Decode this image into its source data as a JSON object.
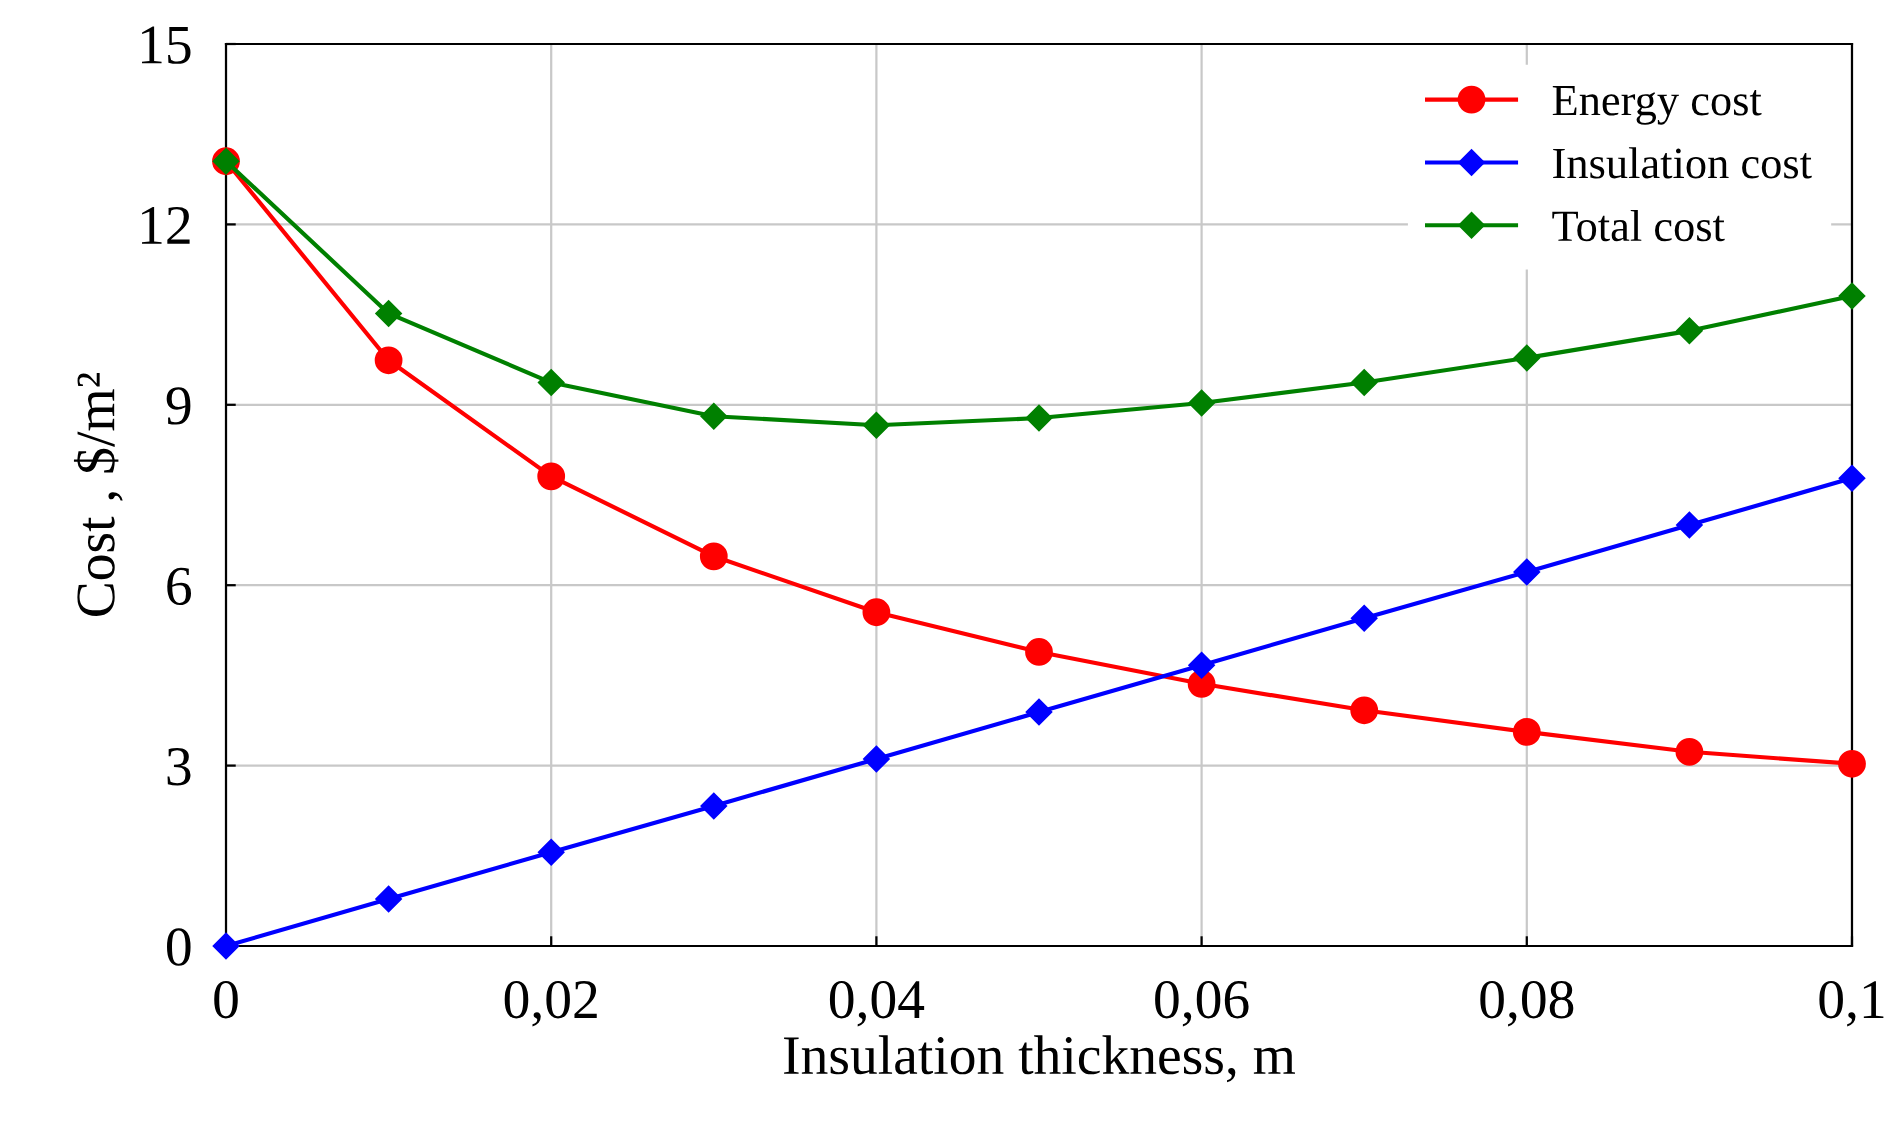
{
  "chart_data": {
    "type": "line",
    "xlabel": "Insulation thickness, m",
    "ylabel": "Cost , $/m²",
    "x": [
      0,
      0.01,
      0.02,
      0.03,
      0.04,
      0.05,
      0.06,
      0.07,
      0.08,
      0.09,
      0.1
    ],
    "series": [
      {
        "name": "Energy cost",
        "color": "#ff0000",
        "marker": "circle",
        "values": [
          13.05,
          9.74,
          7.81,
          6.48,
          5.55,
          4.89,
          4.36,
          3.92,
          3.56,
          3.23,
          3.03
        ]
      },
      {
        "name": "Insulation cost",
        "color": "#0000ff",
        "marker": "diamond",
        "values": [
          0,
          0.78,
          1.56,
          2.33,
          3.11,
          3.89,
          4.67,
          5.45,
          6.22,
          7.0,
          7.78
        ]
      },
      {
        "name": "Total cost",
        "color": "#008000",
        "marker": "diamond",
        "values": [
          13.05,
          10.52,
          9.37,
          8.81,
          8.66,
          8.78,
          9.03,
          9.37,
          9.78,
          10.23,
          10.81
        ]
      }
    ],
    "xlim": [
      0,
      0.1
    ],
    "ylim": [
      0,
      15
    ],
    "xticks": [
      0,
      {
        "value": 0.02,
        "label": "0,02"
      },
      {
        "value": 0.04,
        "label": "0,04"
      },
      {
        "value": 0.06,
        "label": "0,06"
      },
      {
        "value": 0.08,
        "label": "0,08"
      },
      {
        "value": 0.1,
        "label": "0,1"
      }
    ],
    "yticks": [
      0,
      3,
      6,
      9,
      12,
      15
    ],
    "grid": true,
    "legend": "top right",
    "line_style": "solid"
  }
}
